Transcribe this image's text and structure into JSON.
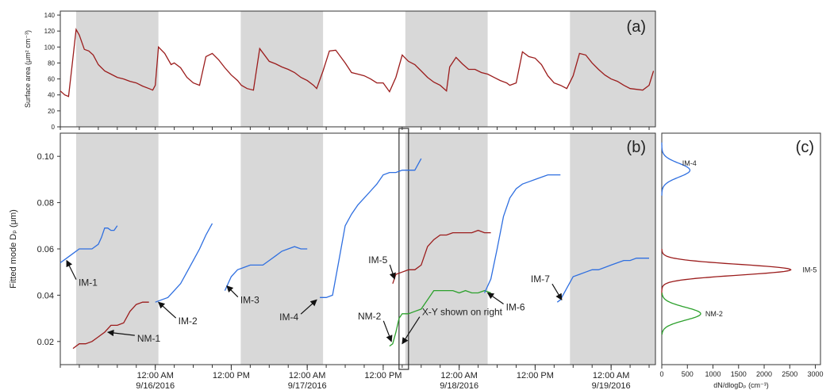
{
  "chart_data": [
    {
      "panel": "a",
      "type": "line",
      "panel_label": "(a)",
      "ylabel": "Surface area (μm² cm⁻³)",
      "ylim": [
        0,
        145
      ],
      "yticks": [
        0,
        20,
        40,
        60,
        80,
        100,
        120,
        140
      ],
      "x_unit": "hours since 9/15/2016 09:00",
      "xlim": [
        0,
        94
      ],
      "shaded_night_intervals": [
        [
          2.5,
          15.5
        ],
        [
          28.5,
          41.5
        ],
        [
          54.5,
          67.5
        ],
        [
          80.5,
          94
        ]
      ],
      "series": [
        {
          "color": "#9b1c1c",
          "x": [
            0,
            0.7,
            1.3,
            1.9,
            2.5,
            3.0,
            3.8,
            4.5,
            5.2,
            6.0,
            7.0,
            8.0,
            9.0,
            10.0,
            11.0,
            12.0,
            13.0,
            14.0,
            14.6,
            15.0,
            15.5,
            16.5,
            17.5,
            18.0,
            19.0,
            20.0,
            21.0,
            22.0,
            23.0,
            24.0,
            25.0,
            26.0,
            27.0,
            28.0,
            28.6,
            29.5,
            30.5,
            31.5,
            33.0,
            34.0,
            35.0,
            36.0,
            37.0,
            38.0,
            39.0,
            40.0,
            40.5,
            41.5,
            42.5,
            43.5,
            45.0,
            46.0,
            47.0,
            48.0,
            49.0,
            50.0,
            51.0,
            52.0,
            53.0,
            54.0,
            55.0,
            56.0,
            57.0,
            58.0,
            59.0,
            60.0,
            61.0,
            61.5,
            62.5,
            63.5,
            64.5,
            65.5,
            66.5,
            67.5,
            68.5,
            69.5,
            70.5,
            71.0,
            72.0,
            73.0,
            74.0,
            75.0,
            76.0,
            77.0,
            78.0,
            79.0,
            80.0,
            81.0,
            82.0,
            83.0,
            84.0,
            85.0,
            86.0,
            87.0,
            88.0,
            89.0,
            90.0,
            91.0,
            92.0,
            93.0,
            93.7
          ],
          "y": [
            45,
            40,
            38,
            80,
            122,
            115,
            97,
            95,
            90,
            78,
            70,
            66,
            62,
            60,
            57,
            55,
            51,
            48,
            46,
            52,
            100,
            92,
            78,
            80,
            74,
            62,
            55,
            52,
            88,
            92,
            84,
            74,
            65,
            58,
            52,
            48,
            46,
            98,
            82,
            79,
            75,
            72,
            68,
            62,
            58,
            52,
            48,
            70,
            95,
            96,
            80,
            68,
            66,
            64,
            60,
            55,
            55,
            44,
            62,
            90,
            82,
            78,
            70,
            62,
            56,
            52,
            45,
            75,
            87,
            79,
            72,
            72,
            68,
            66,
            62,
            58,
            55,
            52,
            55,
            94,
            88,
            86,
            78,
            64,
            55,
            52,
            48,
            64,
            92,
            90,
            80,
            72,
            65,
            60,
            57,
            52,
            48,
            47,
            46,
            52,
            70
          ]
        }
      ]
    },
    {
      "panel": "b",
      "type": "line",
      "panel_label": "(b)",
      "ylabel": "Fitted mode Dₚ (μm)",
      "ylim": [
        0.01,
        0.11
      ],
      "yticks": [
        0.02,
        0.04,
        0.06,
        0.08,
        0.1
      ],
      "ytick_labels": [
        "0.02",
        "0.04",
        "0.06",
        "0.08",
        "0.10"
      ],
      "xlim": [
        0,
        94
      ],
      "xticks": [
        {
          "x": 15,
          "label": "12:00 AM",
          "sublabel": "9/16/2016"
        },
        {
          "x": 27,
          "label": "12:00 PM",
          "sublabel": ""
        },
        {
          "x": 39,
          "label": "12:00 AM",
          "sublabel": "9/17/2016"
        },
        {
          "x": 51,
          "label": "12:00 PM",
          "sublabel": ""
        },
        {
          "x": 63,
          "label": "12:00 AM",
          "sublabel": "9/18/2016"
        },
        {
          "x": 75,
          "label": "12:00 PM",
          "sublabel": ""
        },
        {
          "x": 87,
          "label": "12:00 AM",
          "sublabel": "9/19/2016"
        }
      ],
      "minor_tick_step_hours": 3,
      "shaded_night_intervals": [
        [
          2.5,
          15.5
        ],
        [
          28.5,
          41.5
        ],
        [
          54.5,
          67.5
        ],
        [
          80.5,
          94
        ]
      ],
      "highlight_window": [
        53.5,
        55
      ],
      "series": [
        {
          "name": "IM-1",
          "color": "#2f6fe0",
          "x": [
            0,
            1,
            2,
            3,
            4,
            5,
            6,
            6.5,
            7,
            7.5,
            8,
            8.5,
            9
          ],
          "y": [
            0.054,
            0.056,
            0.058,
            0.06,
            0.06,
            0.06,
            0.062,
            0.065,
            0.069,
            0.069,
            0.068,
            0.068,
            0.07
          ]
        },
        {
          "name": "NM-1",
          "color": "#9b1c1c",
          "x": [
            2,
            3,
            4,
            5,
            6,
            7,
            8,
            9,
            10,
            11,
            12,
            13,
            14
          ],
          "y": [
            0.017,
            0.019,
            0.019,
            0.02,
            0.022,
            0.024,
            0.027,
            0.027,
            0.028,
            0.033,
            0.036,
            0.037,
            0.037
          ]
        },
        {
          "name": "IM-2",
          "color": "#2f6fe0",
          "x": [
            15,
            16,
            17,
            18,
            19,
            20,
            21,
            22,
            23,
            24
          ],
          "y": [
            0.037,
            0.038,
            0.039,
            0.042,
            0.045,
            0.05,
            0.055,
            0.06,
            0.066,
            0.071
          ]
        },
        {
          "name": "IM-3",
          "color": "#2f6fe0",
          "x": [
            26,
            27,
            28,
            29,
            30,
            31,
            32,
            33,
            34,
            35,
            36,
            37,
            38,
            39
          ],
          "y": [
            0.042,
            0.048,
            0.051,
            0.052,
            0.053,
            0.053,
            0.053,
            0.055,
            0.057,
            0.059,
            0.06,
            0.061,
            0.06,
            0.06
          ]
        },
        {
          "name": "IM-4",
          "color": "#2f6fe0",
          "x": [
            41,
            42,
            43,
            44,
            45,
            46,
            47,
            48,
            49,
            50,
            51,
            52,
            53,
            54,
            55,
            56,
            57
          ],
          "y": [
            0.039,
            0.039,
            0.04,
            0.055,
            0.07,
            0.075,
            0.079,
            0.082,
            0.085,
            0.088,
            0.092,
            0.093,
            0.093,
            0.094,
            0.094,
            0.094,
            0.099
          ]
        },
        {
          "name": "IM-5",
          "color": "#9b1c1c",
          "x": [
            52.5,
            53,
            54,
            55,
            56,
            57,
            58,
            59,
            60,
            61,
            62,
            63,
            64,
            65,
            66,
            67,
            68
          ],
          "y": [
            0.045,
            0.049,
            0.05,
            0.051,
            0.051,
            0.053,
            0.061,
            0.064,
            0.066,
            0.066,
            0.067,
            0.067,
            0.067,
            0.067,
            0.068,
            0.067,
            0.067
          ]
        },
        {
          "name": "NM-2",
          "color": "#2ca02c",
          "x": [
            52,
            52.5,
            53,
            53.5,
            54,
            54.5,
            55,
            56,
            57,
            58,
            59,
            60,
            61,
            62,
            63,
            64,
            65,
            66,
            67,
            68
          ],
          "y": [
            0.018,
            0.019,
            0.024,
            0.03,
            0.032,
            0.032,
            0.032,
            0.033,
            0.034,
            0.038,
            0.042,
            0.042,
            0.042,
            0.042,
            0.041,
            0.042,
            0.041,
            0.041,
            0.042,
            0.041
          ]
        },
        {
          "name": "IM-6",
          "color": "#2f6fe0",
          "x": [
            67,
            68,
            69,
            70,
            71,
            72,
            73,
            74,
            75,
            76,
            77,
            78,
            79
          ],
          "y": [
            0.041,
            0.047,
            0.06,
            0.074,
            0.082,
            0.086,
            0.088,
            0.089,
            0.09,
            0.091,
            0.092,
            0.092,
            0.092
          ]
        },
        {
          "name": "IM-7",
          "color": "#2f6fe0",
          "x": [
            78.5,
            79,
            80,
            81,
            82,
            83,
            84,
            85,
            86,
            87,
            88,
            89,
            90,
            91,
            92,
            93
          ],
          "y": [
            0.037,
            0.038,
            0.043,
            0.048,
            0.049,
            0.05,
            0.051,
            0.051,
            0.052,
            0.053,
            0.054,
            0.055,
            0.055,
            0.056,
            0.056,
            0.056
          ]
        }
      ],
      "annotations": [
        {
          "text": "IM-1",
          "target_x": 1.0,
          "target_y": 0.055,
          "dx": 12,
          "dy": 24
        },
        {
          "text": "NM-1",
          "target_x": 7.5,
          "target_y": 0.024,
          "dx": 34,
          "dy": 4
        },
        {
          "text": "IM-2",
          "target_x": 15.5,
          "target_y": 0.037,
          "dx": 22,
          "dy": 20
        },
        {
          "text": "IM-3",
          "target_x": 26.3,
          "target_y": 0.044,
          "dx": 14,
          "dy": 14
        },
        {
          "text": "IM-4",
          "target_x": 40.5,
          "target_y": 0.038,
          "dx": -20,
          "dy": 18
        },
        {
          "text": "IM-5",
          "target_x": 52.8,
          "target_y": 0.047,
          "dx": -6,
          "dy": -18
        },
        {
          "text": "NM-2",
          "target_x": 52.3,
          "target_y": 0.02,
          "dx": -10,
          "dy": -26
        },
        {
          "text": "X-Y shown on right",
          "target_x": 54.0,
          "target_y": 0.019,
          "dx": 22,
          "dy": -34
        },
        {
          "text": "IM-6",
          "target_x": 67.5,
          "target_y": 0.041,
          "dx": 20,
          "dy": 14
        },
        {
          "text": "IM-7",
          "target_x": 79.2,
          "target_y": 0.038,
          "dx": -12,
          "dy": -20
        }
      ]
    },
    {
      "panel": "c",
      "type": "line",
      "panel_label": "(c)",
      "xlabel": "dN/dlogDₚ (cm⁻³)",
      "xticks": [
        0,
        500,
        1000,
        1500,
        2000,
        2500,
        3000
      ],
      "xlim": [
        0,
        3100
      ],
      "ylim": [
        0.01,
        0.11
      ],
      "series": [
        {
          "name": "IM-4",
          "label_pos": [
            400,
            0.097
          ],
          "color": "#2f6fe0",
          "peak": 550,
          "center": 0.094,
          "width": 0.003,
          "range": [
            0.083,
            0.106
          ]
        },
        {
          "name": "IM-5",
          "label_pos": [
            2750,
            0.051
          ],
          "color": "#9b1c1c",
          "peak": 2520,
          "center": 0.051,
          "width": 0.0023,
          "range": [
            0.04,
            0.06
          ]
        },
        {
          "name": "NM-2",
          "label_pos": [
            850,
            0.032
          ],
          "color": "#2ca02c",
          "peak": 760,
          "center": 0.032,
          "width": 0.0028,
          "range": [
            0.023,
            0.041
          ]
        }
      ]
    }
  ]
}
